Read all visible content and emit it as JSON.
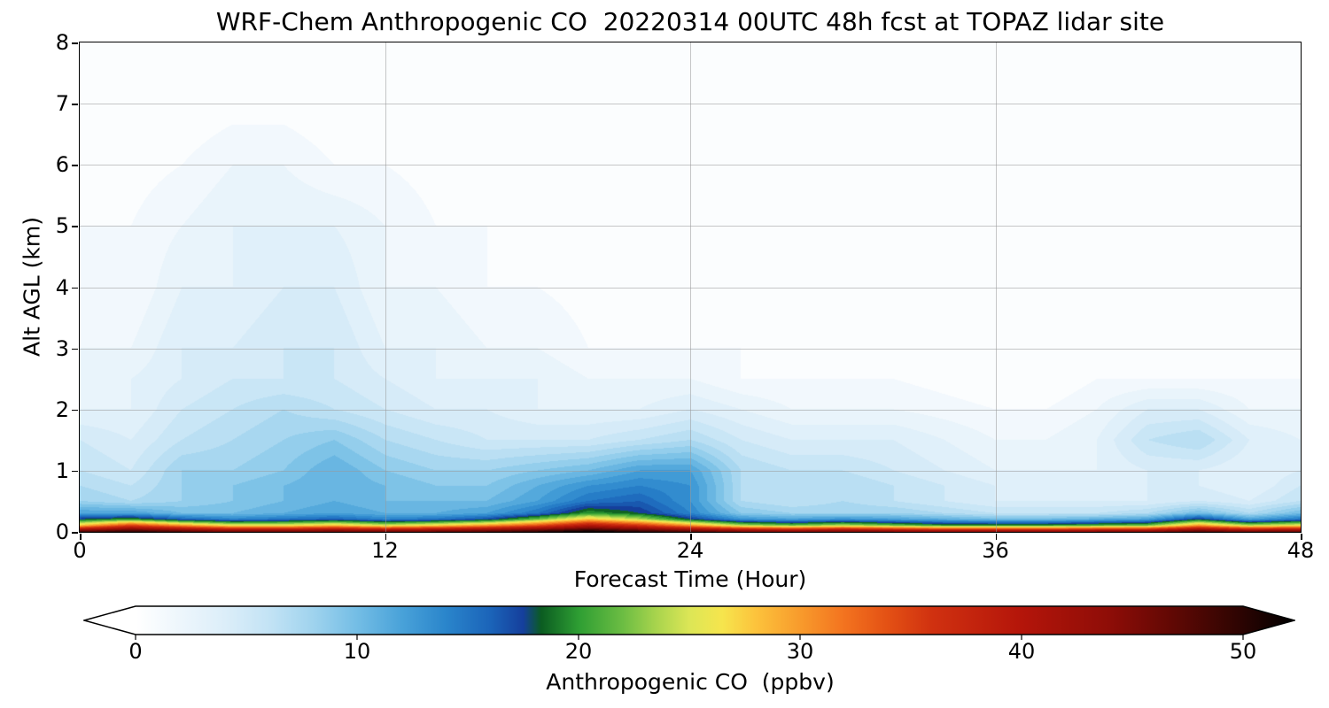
{
  "chart_data": {
    "type": "heatmap",
    "title": "WRF-Chem Anthropogenic CO  20220314 00UTC 48h fcst at TOPAZ lidar site",
    "xlabel": "Forecast Time (Hour)",
    "ylabel": "Alt AGL (km)",
    "xlim": [
      0,
      48
    ],
    "ylim": [
      0,
      8
    ],
    "xticks": [
      "0",
      "12",
      "24",
      "36",
      "48"
    ],
    "yticks": [
      "0",
      "1",
      "2",
      "3",
      "4",
      "5",
      "6",
      "7",
      "8"
    ],
    "grid": true,
    "grid_color": "#999999",
    "value_unit": "ppbv",
    "vmin": 0,
    "vmax": 52,
    "x": [
      0,
      2,
      4,
      6,
      8,
      10,
      12,
      14,
      16,
      18,
      20,
      22,
      24,
      26,
      28,
      30,
      32,
      34,
      36,
      38,
      40,
      42,
      44,
      46,
      48
    ],
    "y": [
      0,
      0.1,
      0.2,
      0.3,
      0.5,
      0.75,
      1,
      1.5,
      2,
      2.5,
      3,
      4,
      5,
      6,
      7,
      8
    ],
    "values": [
      [
        48,
        50,
        48,
        46,
        46,
        47,
        46,
        47,
        48,
        50,
        52,
        50,
        48,
        46,
        45,
        46,
        45,
        44,
        44,
        44,
        45,
        45,
        48,
        46,
        47
      ],
      [
        28,
        35,
        30,
        26,
        26,
        28,
        25,
        27,
        30,
        34,
        40,
        36,
        30,
        24,
        22,
        24,
        22,
        20,
        20,
        20,
        21,
        22,
        30,
        24,
        26
      ],
      [
        18,
        20,
        16,
        14,
        15,
        16,
        14,
        15,
        17,
        22,
        28,
        24,
        18,
        13,
        12,
        13,
        12,
        11,
        10,
        10,
        11,
        12,
        18,
        12,
        15
      ],
      [
        12,
        12,
        10,
        10,
        11,
        12,
        11,
        11,
        12,
        15,
        20,
        18,
        14,
        9,
        8,
        8,
        8,
        7,
        6,
        6,
        6,
        7,
        10,
        7,
        10
      ],
      [
        8,
        7,
        8,
        9,
        10,
        11,
        10,
        10,
        10,
        12,
        15,
        16,
        13,
        7,
        6,
        7,
        6,
        5,
        4,
        4,
        4,
        4,
        5,
        4,
        6
      ],
      [
        7,
        6,
        8,
        9,
        10,
        11,
        10,
        9,
        9,
        11,
        13,
        14,
        13,
        7,
        6,
        7,
        6,
        5,
        4,
        3,
        3,
        4,
        4,
        3,
        5
      ],
      [
        6,
        5,
        8,
        8,
        9,
        11,
        9,
        8,
        8,
        9,
        10,
        12,
        12,
        7,
        6,
        6,
        5,
        4,
        3,
        3,
        3,
        4,
        4,
        3,
        4
      ],
      [
        5,
        4,
        6,
        7,
        8,
        9,
        7,
        6,
        5,
        5,
        5,
        6,
        7,
        5,
        4,
        4,
        4,
        3,
        2,
        2,
        3,
        6,
        7,
        4,
        3
      ],
      [
        3,
        3,
        5,
        6,
        7,
        6,
        5,
        4,
        4,
        3,
        3,
        3,
        4,
        3,
        2,
        2,
        2,
        1.5,
        1,
        1,
        2,
        4,
        4,
        2,
        2
      ],
      [
        2,
        3,
        4,
        5,
        5,
        5,
        4,
        3,
        3,
        3,
        2,
        2,
        2,
        1,
        1,
        1,
        1,
        0.5,
        0,
        0,
        1,
        1,
        1,
        1,
        1
      ],
      [
        2,
        2,
        4,
        4,
        5,
        5,
        3,
        3,
        2,
        2,
        1,
        1,
        1,
        1,
        0.5,
        0.5,
        0,
        0,
        0,
        0,
        0,
        0,
        0,
        0,
        0
      ],
      [
        1,
        1,
        3,
        3,
        4,
        4,
        2,
        2,
        1,
        1,
        0.5,
        0.5,
        0.5,
        0,
        0,
        0,
        0,
        0,
        0,
        0,
        0,
        0,
        0,
        0,
        0
      ],
      [
        1,
        1,
        2,
        3,
        3,
        3,
        2,
        1,
        1,
        0.5,
        0,
        0,
        0,
        0,
        0,
        0,
        0,
        0,
        0,
        0,
        0,
        0,
        0,
        0,
        0
      ],
      [
        0.5,
        0.5,
        1,
        2,
        2,
        1,
        1,
        0.5,
        0,
        0,
        0,
        0,
        0,
        0,
        0,
        0,
        0,
        0,
        0,
        0,
        0,
        0,
        0,
        0,
        0
      ],
      [
        0,
        0,
        0,
        0.5,
        0.5,
        0,
        0,
        0,
        0,
        0,
        0,
        0,
        0,
        0,
        0,
        0,
        0,
        0,
        0,
        0,
        0,
        0,
        0,
        0,
        0
      ],
      [
        0,
        0,
        0,
        0,
        0,
        0,
        0,
        0,
        0,
        0,
        0,
        0,
        0,
        0,
        0,
        0,
        0,
        0,
        0,
        0,
        0,
        0,
        0,
        0,
        0
      ]
    ],
    "colormap": [
      [
        0,
        "#ffffff"
      ],
      [
        2,
        "#edf6fc"
      ],
      [
        4,
        "#dceef9"
      ],
      [
        6,
        "#c3e3f5"
      ],
      [
        8,
        "#9fd3ee"
      ],
      [
        10,
        "#73bde5"
      ],
      [
        12,
        "#49a2d9"
      ],
      [
        14,
        "#2a85cb"
      ],
      [
        16,
        "#1b64b9"
      ],
      [
        17.5,
        "#153f9c"
      ],
      [
        18.3,
        "#0b5c21"
      ],
      [
        20,
        "#2e9e33"
      ],
      [
        22,
        "#6cbd43"
      ],
      [
        23.5,
        "#a8d44d"
      ],
      [
        25,
        "#dce656"
      ],
      [
        26.5,
        "#f6e54d"
      ],
      [
        28,
        "#fcc33c"
      ],
      [
        30,
        "#f89b2c"
      ],
      [
        32,
        "#f3731f"
      ],
      [
        34,
        "#e35014"
      ],
      [
        36,
        "#d03110"
      ],
      [
        40,
        "#b4150a"
      ],
      [
        44,
        "#8e0d07"
      ],
      [
        47,
        "#5e0804"
      ],
      [
        50,
        "#2b0402"
      ],
      [
        52,
        "#000000"
      ]
    ],
    "colorbar": {
      "label": "Anthropogenic CO  (ppbv)",
      "ticks": [
        0,
        10,
        20,
        30,
        40,
        50
      ],
      "tick_labels": [
        "0",
        "10",
        "20",
        "30",
        "40",
        "50"
      ],
      "range": [
        0,
        50
      ],
      "extend": "both",
      "under_color": "#ffffff",
      "over_color": "#000000"
    }
  }
}
